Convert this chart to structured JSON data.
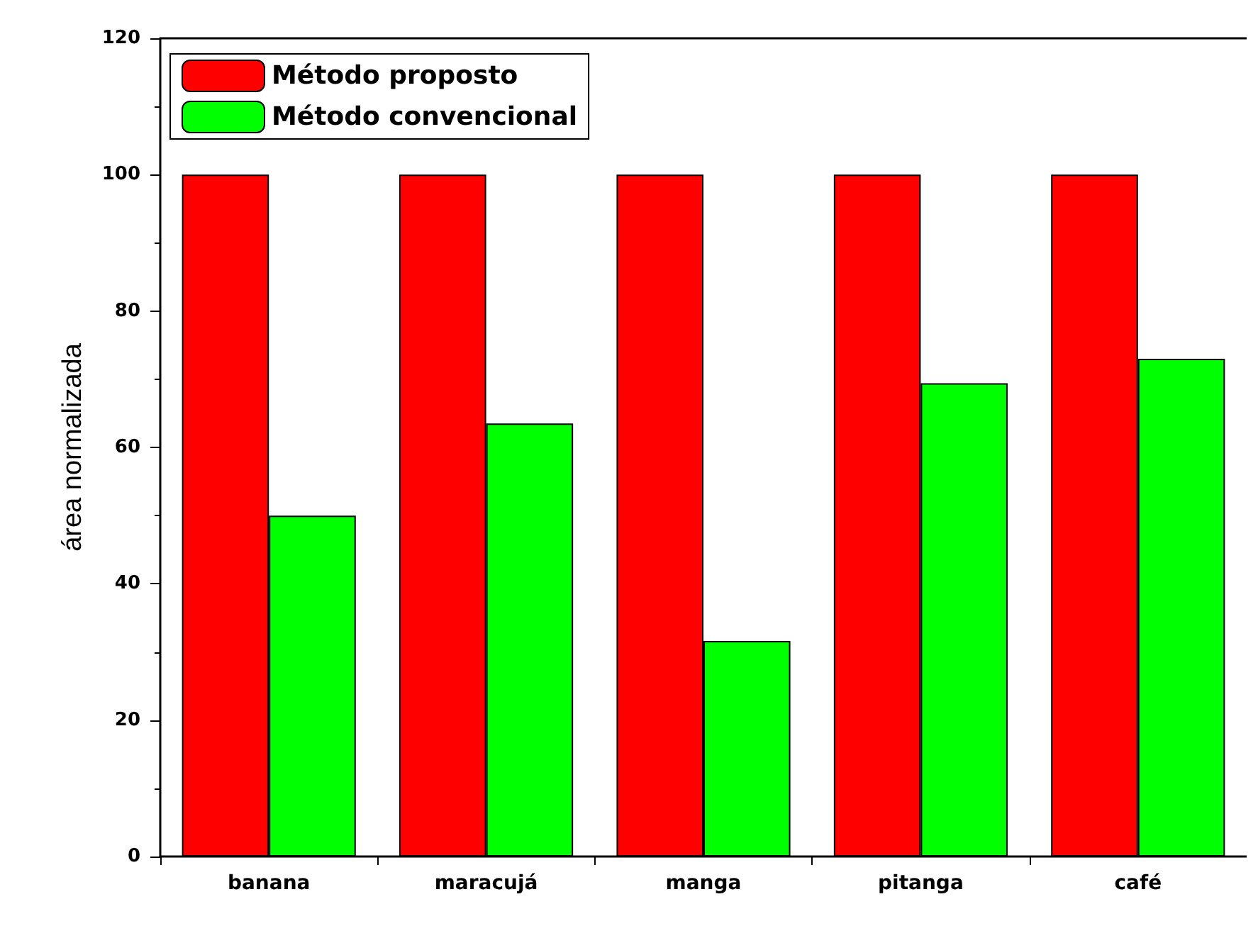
{
  "chart_data": {
    "type": "bar",
    "ylabel": "área normalizada",
    "categories": [
      "banana",
      "maracujá",
      "manga",
      "pitanga",
      "café"
    ],
    "series": [
      {
        "name": "Método proposto",
        "color": "#ff0000",
        "values": [
          100,
          100,
          100,
          100,
          100
        ]
      },
      {
        "name": "Método convencional",
        "color": "#00ff00",
        "values": [
          50,
          63.5,
          31.6,
          69.4,
          73
        ]
      }
    ],
    "ylim": [
      0,
      120
    ],
    "yticks": [
      0,
      20,
      40,
      60,
      80,
      100,
      120
    ],
    "grid": false,
    "legend": "top left"
  }
}
